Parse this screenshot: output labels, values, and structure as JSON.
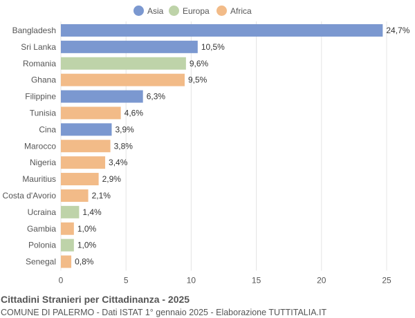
{
  "chart_data": {
    "type": "bar",
    "orientation": "horizontal",
    "categories": [
      "Bangladesh",
      "Sri Lanka",
      "Romania",
      "Ghana",
      "Filippine",
      "Tunisia",
      "Cina",
      "Marocco",
      "Nigeria",
      "Mauritius",
      "Costa d'Avorio",
      "Ucraina",
      "Gambia",
      "Polonia",
      "Senegal"
    ],
    "values": [
      24.7,
      10.5,
      9.6,
      9.5,
      6.3,
      4.6,
      3.9,
      3.8,
      3.4,
      2.9,
      2.1,
      1.4,
      1.0,
      1.0,
      0.8
    ],
    "value_labels": [
      "24,7%",
      "10,5%",
      "9,6%",
      "9,5%",
      "6,3%",
      "4,6%",
      "3,9%",
      "3,8%",
      "3,4%",
      "2,9%",
      "2,1%",
      "1,4%",
      "1,0%",
      "1,0%",
      "0,8%"
    ],
    "groups": [
      "Asia",
      "Asia",
      "Europa",
      "Africa",
      "Asia",
      "Africa",
      "Asia",
      "Africa",
      "Africa",
      "Africa",
      "Africa",
      "Europa",
      "Africa",
      "Europa",
      "Africa"
    ],
    "legend": [
      {
        "name": "Asia",
        "color": "#7b98d0"
      },
      {
        "name": "Europa",
        "color": "#bed3a9"
      },
      {
        "name": "Africa",
        "color": "#f2bb88"
      }
    ],
    "legend_position": "top-center",
    "xlim": [
      0,
      25
    ],
    "xticks": [
      0,
      5,
      10,
      15,
      20,
      25
    ],
    "grid": true
  },
  "footer": {
    "title": "Cittadini Stranieri per Cittadinanza - 2025",
    "subtitle": "COMUNE DI PALERMO - Dati ISTAT 1° gennaio 2025 - Elaborazione TUTTITALIA.IT"
  }
}
